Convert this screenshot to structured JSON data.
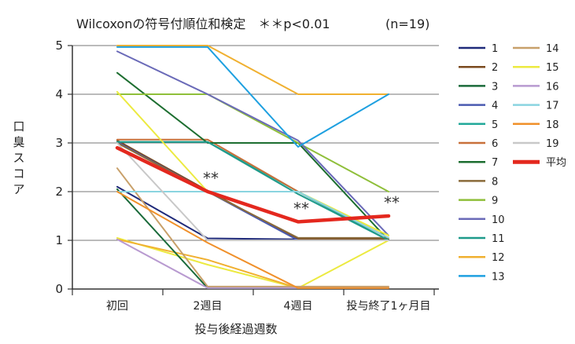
{
  "chart_data": {
    "type": "line",
    "title": "Wilcoxonの符号付順位和検定　＊＊p<0.01",
    "subtitle": "(n=19)",
    "xlabel": "投与後経過週数",
    "ylabel": "口臭スコア",
    "categories": [
      "初回",
      "2週目",
      "4週目",
      "投与終了1ヶ月目"
    ],
    "ylim": [
      0,
      5
    ],
    "yticks": [
      "0",
      "1",
      "2",
      "3",
      "4",
      "5"
    ],
    "grid": true,
    "legend_position": "right",
    "series": [
      {
        "name": "1",
        "color": "#1f2a7a",
        "values": [
          2.1,
          1.04,
          1.02,
          1.02
        ]
      },
      {
        "name": "2",
        "color": "#7a4a1e",
        "values": [
          3.05,
          2.02,
          1.02,
          1.02
        ]
      },
      {
        "name": "3",
        "color": "#1a6a3a",
        "values": [
          2.05,
          0.02,
          0.02,
          0.02
        ]
      },
      {
        "name": "4",
        "color": "#4a5ab0",
        "values": [
          3.02,
          2.0,
          1.0,
          1.0
        ]
      },
      {
        "name": "5",
        "color": "#22a89a",
        "values": [
          3.02,
          3.02,
          2.0,
          1.0
        ]
      },
      {
        "name": "6",
        "color": "#c8703a",
        "values": [
          3.07,
          3.07,
          2.0,
          1.05
        ]
      },
      {
        "name": "7",
        "color": "#1d6e30",
        "values": [
          4.44,
          3.0,
          3.0,
          1.0
        ]
      },
      {
        "name": "8",
        "color": "#8a6a3a",
        "values": [
          3.0,
          2.0,
          1.05,
          1.05
        ]
      },
      {
        "name": "9",
        "color": "#8fbf3a",
        "values": [
          4.0,
          4.0,
          3.0,
          2.0
        ]
      },
      {
        "name": "10",
        "color": "#6a6ab8",
        "values": [
          4.88,
          4.0,
          3.05,
          1.1
        ]
      },
      {
        "name": "11",
        "color": "#1e9a8a",
        "values": [
          3.02,
          3.02,
          1.95,
          1.0
        ]
      },
      {
        "name": "12",
        "color": "#f0b030",
        "values": [
          5.0,
          5.0,
          4.0,
          4.0
        ]
      },
      {
        "name": "13",
        "color": "#1ea0e0",
        "values": [
          4.97,
          4.97,
          2.92,
          4.0
        ]
      },
      {
        "name": "14",
        "color": "#c8a06a",
        "values": [
          2.48,
          0.05,
          0.05,
          0.05
        ]
      },
      {
        "name": "15",
        "color": "#ecea40",
        "values": [
          4.05,
          2.0,
          2.0,
          1.1
        ]
      },
      {
        "name": "16",
        "color": "#b89ad0",
        "values": [
          1.02,
          0.02,
          0.02,
          0.02
        ]
      },
      {
        "name": "17",
        "color": "#8ad4e0",
        "values": [
          2.0,
          2.0,
          2.0,
          1.05
        ]
      },
      {
        "name": "18",
        "color": "#f0902a",
        "values": [
          2.0,
          0.95,
          0.02,
          0.02
        ]
      },
      {
        "name": "19",
        "color": "#c8c8c8",
        "values": [
          3.0,
          1.0,
          1.0,
          1.0
        ]
      }
    ],
    "mean": {
      "name": "平均",
      "color": "#e4281e",
      "values": [
        2.9,
        2.0,
        1.38,
        1.5
      ]
    },
    "extra_lines": [
      {
        "color": "#ecea40",
        "values": [
          1.05,
          0.5,
          0.02,
          1.0
        ]
      },
      {
        "color": "#f0b030",
        "values": [
          1.02,
          0.6,
          0.02,
          0.02
        ]
      }
    ],
    "annotations": [
      {
        "text": "**",
        "category_index": 1
      },
      {
        "text": "**",
        "category_index": 2
      },
      {
        "text": "**",
        "category_index": 3
      }
    ]
  }
}
